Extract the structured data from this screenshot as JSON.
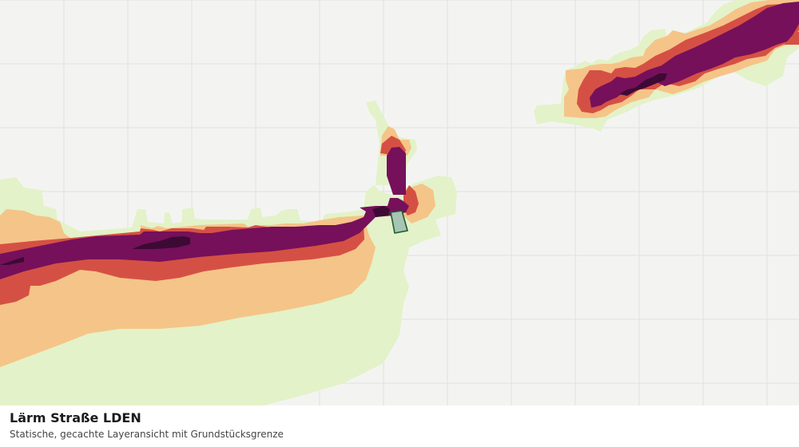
{
  "caption": {
    "title": "Lärm Straße LDEN",
    "subtitle": "Statische, gecachte Layeransicht mit Grundstücksgrenze"
  },
  "map": {
    "background_color": "#f3f4f2",
    "grid_color": "#e1e2df",
    "noise_bands": [
      {
        "level": 1,
        "color": "#e3f2c8"
      },
      {
        "level": 2,
        "color": "#f5c488"
      },
      {
        "level": 3,
        "color": "#d55044"
      },
      {
        "level": 4,
        "color": "#76105a"
      },
      {
        "level": 5,
        "color": "#3d0a35"
      }
    ],
    "parcel": {
      "fill": "#a7c5b3",
      "stroke": "#1f5a34"
    }
  }
}
